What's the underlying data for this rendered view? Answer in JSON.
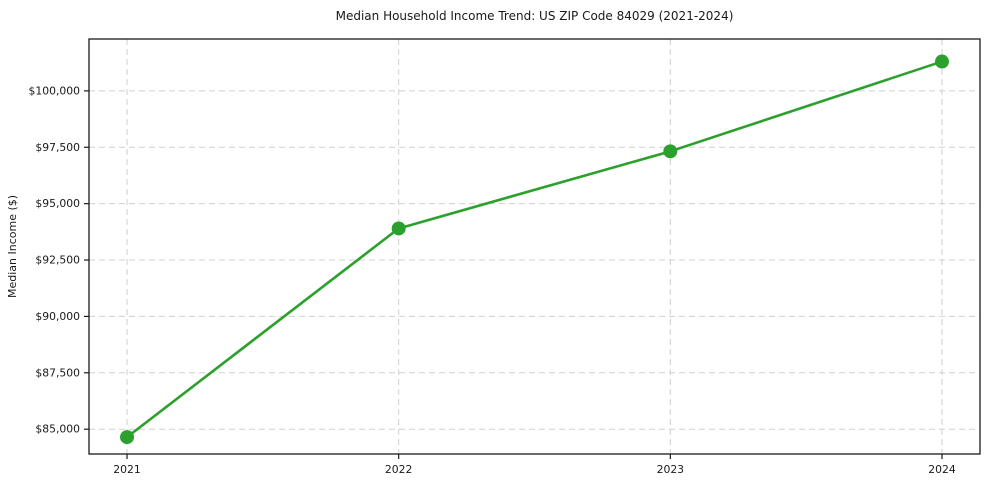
{
  "chart_data": {
    "type": "line",
    "title": "Median Household Income Trend: US ZIP Code 84029 (2021-2024)",
    "xlabel": "",
    "ylabel": "Median Income ($)",
    "x": [
      2021,
      2022,
      2023,
      2024
    ],
    "x_tick_labels": [
      "2021",
      "2022",
      "2023",
      "2024"
    ],
    "series": [
      {
        "name": "Median Household Income",
        "values": [
          84650,
          93900,
          97320,
          101300
        ]
      }
    ],
    "y_ticks": [
      85000,
      87500,
      90000,
      92500,
      95000,
      97500,
      100000
    ],
    "y_tick_labels": [
      "$85,000",
      "$87,500",
      "$90,000",
      "$92,500",
      "$95,000",
      "$97,500",
      "$100,000"
    ],
    "xlim": [
      2020.86,
      2024.14
    ],
    "ylim": [
      83900,
      102300
    ],
    "grid": true,
    "grid_style": "dashed",
    "legend": "none",
    "line_color": "#2ca02c",
    "marker": "circle",
    "grid_color": "#d0d0d0",
    "spine_color": "#1a1a1a",
    "background_color": "#ffffff"
  }
}
